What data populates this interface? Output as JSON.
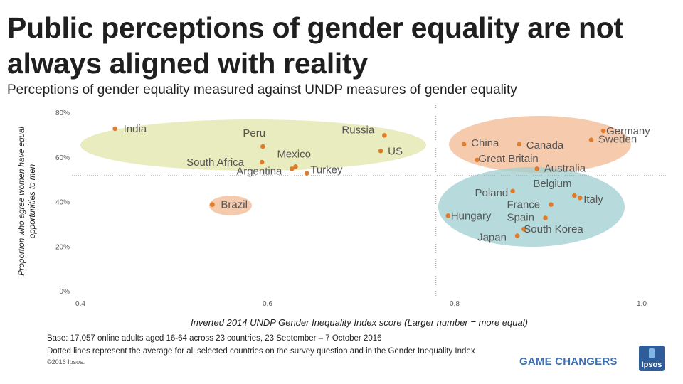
{
  "header": {
    "title": "Public perceptions of gender equality are not always aligned with reality",
    "subtitle": "Perceptions of gender equality measured against UNDP measures of gender equality"
  },
  "footer": {
    "base_note": "Base: 17,057 online adults aged 16-64 across 23 countries,  23 September – 7 October 2016",
    "dotted_note": "Dotted lines represent the average for all selected countries on the survey question and in the Gender Inequality Index",
    "copyright": "©2016 Ipsos.",
    "brand": "GAME CHANGERS",
    "logo_text": "Ipsos"
  },
  "chart_data": {
    "type": "scatter",
    "xlabel": "Inverted 2014 UNDP Gender Inequality Index score (Larger number = more equal)",
    "ylabel": "Proportion  who agree women have equal opportunities to men",
    "xlim": [
      0.4,
      1.0
    ],
    "ylim": [
      0,
      80
    ],
    "x_ticks": [
      "0,4",
      "0,6",
      "0,8",
      "1,0"
    ],
    "y_ticks": [
      "0%",
      "20%",
      "40%",
      "60%",
      "80%"
    ],
    "point_color": "#e07b2a",
    "average_lines": {
      "x": 0.78,
      "y": 52
    },
    "points": [
      {
        "name": "India",
        "x": 0.437,
        "y": 73
      },
      {
        "name": "Peru",
        "x": 0.595,
        "y": 65
      },
      {
        "name": "Russia",
        "x": 0.725,
        "y": 70
      },
      {
        "name": "US",
        "x": 0.721,
        "y": 63
      },
      {
        "name": "Mexico",
        "x": 0.63,
        "y": 56
      },
      {
        "name": "South Africa",
        "x": 0.594,
        "y": 58
      },
      {
        "name": "Argentina",
        "x": 0.626,
        "y": 55
      },
      {
        "name": "Turkey",
        "x": 0.642,
        "y": 53
      },
      {
        "name": "Brazil",
        "x": 0.541,
        "y": 39
      },
      {
        "name": "China",
        "x": 0.81,
        "y": 66
      },
      {
        "name": "Canada",
        "x": 0.869,
        "y": 66
      },
      {
        "name": "Germany",
        "x": 0.959,
        "y": 72
      },
      {
        "name": "Sweden",
        "x": 0.946,
        "y": 68
      },
      {
        "name": "Great Britain",
        "x": 0.824,
        "y": 59
      },
      {
        "name": "Australia",
        "x": 0.888,
        "y": 55
      },
      {
        "name": "Poland",
        "x": 0.862,
        "y": 45
      },
      {
        "name": "Belgium",
        "x": 0.928,
        "y": 43
      },
      {
        "name": "Italy",
        "x": 0.934,
        "y": 42
      },
      {
        "name": "France",
        "x": 0.903,
        "y": 39
      },
      {
        "name": "Hungary",
        "x": 0.793,
        "y": 34
      },
      {
        "name": "Spain",
        "x": 0.897,
        "y": 33
      },
      {
        "name": "South Korea",
        "x": 0.874,
        "y": 28
      },
      {
        "name": "Japan",
        "x": 0.867,
        "y": 25
      }
    ],
    "groups": [
      {
        "color": "#e2e6a8",
        "opacity": 0.75
      },
      {
        "color": "#f3bd99",
        "opacity": 0.8
      },
      {
        "color": "#f3bd99",
        "opacity": 0.8
      },
      {
        "color": "#9fcfd0",
        "opacity": 0.75
      }
    ]
  }
}
